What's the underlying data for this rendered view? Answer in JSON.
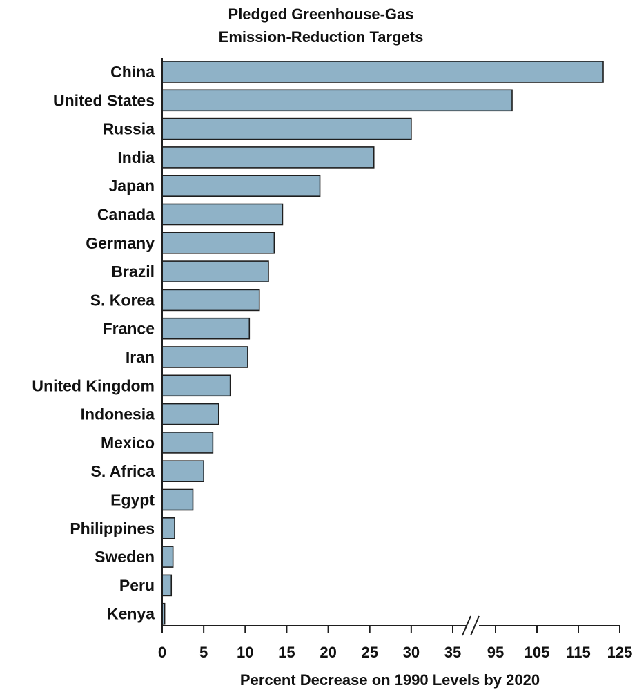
{
  "chart_data": {
    "type": "bar",
    "orientation": "horizontal",
    "title_lines": [
      "Pledged Greenhouse-Gas",
      "Emission-Reduction Targets"
    ],
    "xlabel": "Percent Decrease on 1990 Levels by 2020",
    "ylabel": "",
    "x_axis": {
      "broken": true,
      "segments": [
        {
          "range": [
            0,
            35
          ],
          "ticks": [
            0,
            5,
            10,
            15,
            20,
            25,
            30,
            35
          ]
        },
        {
          "range": [
            95,
            125
          ],
          "ticks": [
            95,
            105,
            115,
            125
          ]
        }
      ]
    },
    "grid": false,
    "legend": "none",
    "colors": {
      "bar_fill": "#8fb2c7",
      "bar_stroke": "#1e1e1e",
      "axis": "#1e1e1e",
      "text": "#111111"
    },
    "categories": [
      "China",
      "United States",
      "Russia",
      "India",
      "Japan",
      "Canada",
      "Germany",
      "Brazil",
      "S. Korea",
      "France",
      "Iran",
      "United Kingdom",
      "Indonesia",
      "Mexico",
      "S. Africa",
      "Egypt",
      "Philippines",
      "Sweden",
      "Peru",
      "Kenya"
    ],
    "values": [
      121,
      99,
      30,
      25.5,
      19,
      14.5,
      13.5,
      12.8,
      11.7,
      10.5,
      10.3,
      8.2,
      6.8,
      6.1,
      5,
      3.7,
      1.5,
      1.3,
      1.1,
      0.3
    ]
  }
}
